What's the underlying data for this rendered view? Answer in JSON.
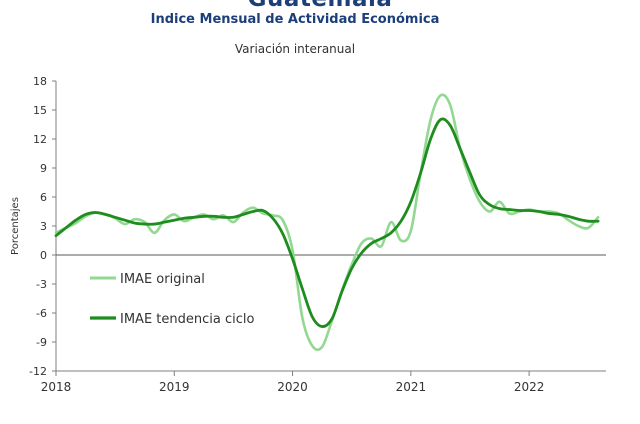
{
  "header": {
    "title": "Guatemala",
    "subtitle": "Indice Mensual de  Actividad Económica",
    "chart_subtitle": "Variación interanual"
  },
  "colors": {
    "original": "#92d891",
    "trend": "#1e8c1e",
    "axis": "#7f7f7f",
    "text": "#1c3f7a"
  },
  "chart_data": {
    "type": "line",
    "title": "Indice Mensual de  Actividad Económica",
    "subtitle": "Variación interanual",
    "xlabel": "",
    "ylabel": "Porcentajes",
    "xlim": [
      2018.0,
      2022.65
    ],
    "ylim": [
      -12,
      18
    ],
    "yticks": [
      18,
      15,
      12,
      9,
      6,
      3,
      0,
      -3,
      -6,
      -9,
      -12
    ],
    "ytick_labels": [
      "18",
      "15",
      "12",
      "9",
      "6",
      "3",
      "0",
      "-3",
      "-6",
      "-9",
      "-12"
    ],
    "xticks": [
      2018,
      2019,
      2020,
      2021,
      2022
    ],
    "xtick_labels": [
      "2018",
      "2019",
      "2020",
      "2021",
      "2022"
    ],
    "grid": false,
    "legend_position": "bottom-left",
    "series": [
      {
        "name": "IMAE original",
        "color": "#92d891",
        "x": [
          2018.0,
          2018.083,
          2018.167,
          2018.25,
          2018.333,
          2018.417,
          2018.5,
          2018.583,
          2018.667,
          2018.75,
          2018.833,
          2018.917,
          2019.0,
          2019.083,
          2019.167,
          2019.25,
          2019.333,
          2019.417,
          2019.5,
          2019.583,
          2019.667,
          2019.75,
          2019.833,
          2019.917,
          2020.0,
          2020.083,
          2020.167,
          2020.25,
          2020.333,
          2020.417,
          2020.5,
          2020.583,
          2020.667,
          2020.75,
          2020.833,
          2020.917,
          2021.0,
          2021.083,
          2021.167,
          2021.25,
          2021.333,
          2021.417,
          2021.5,
          2021.583,
          2021.667,
          2021.75,
          2021.833,
          2021.917,
          2022.0,
          2022.083,
          2022.167,
          2022.25,
          2022.333,
          2022.417,
          2022.5,
          2022.583
        ],
        "values": [
          2.3,
          2.8,
          3.3,
          4.0,
          4.4,
          4.2,
          3.8,
          3.2,
          3.7,
          3.4,
          2.3,
          3.6,
          4.2,
          3.5,
          3.9,
          4.2,
          3.7,
          4.1,
          3.4,
          4.4,
          4.9,
          4.3,
          4.1,
          3.6,
          0.5,
          -6.5,
          -9.4,
          -9.5,
          -6.8,
          -3.7,
          -1.0,
          1.2,
          1.7,
          0.9,
          3.4,
          1.5,
          2.5,
          8.5,
          14.0,
          16.5,
          15.5,
          11.0,
          7.8,
          5.5,
          4.5,
          5.5,
          4.3,
          4.5,
          4.7,
          4.5,
          4.5,
          4.3,
          3.6,
          3.0,
          2.8,
          3.9
        ]
      },
      {
        "name": "IMAE tendencia ciclo",
        "color": "#1e8c1e",
        "x": [
          2018.0,
          2018.083,
          2018.167,
          2018.25,
          2018.333,
          2018.417,
          2018.5,
          2018.583,
          2018.667,
          2018.75,
          2018.833,
          2018.917,
          2019.0,
          2019.083,
          2019.167,
          2019.25,
          2019.333,
          2019.417,
          2019.5,
          2019.583,
          2019.667,
          2019.75,
          2019.833,
          2019.917,
          2020.0,
          2020.083,
          2020.167,
          2020.25,
          2020.333,
          2020.417,
          2020.5,
          2020.583,
          2020.667,
          2020.75,
          2020.833,
          2020.917,
          2021.0,
          2021.083,
          2021.167,
          2021.25,
          2021.333,
          2021.417,
          2021.5,
          2021.583,
          2021.667,
          2021.75,
          2021.833,
          2021.917,
          2022.0,
          2022.083,
          2022.167,
          2022.25,
          2022.333,
          2022.417,
          2022.5,
          2022.583
        ],
        "values": [
          2.0,
          2.8,
          3.6,
          4.2,
          4.4,
          4.2,
          3.9,
          3.6,
          3.3,
          3.2,
          3.2,
          3.4,
          3.6,
          3.8,
          3.9,
          4.0,
          4.0,
          3.9,
          3.9,
          4.2,
          4.5,
          4.6,
          3.8,
          2.2,
          -0.4,
          -3.5,
          -6.4,
          -7.4,
          -6.6,
          -3.8,
          -1.4,
          0.2,
          1.2,
          1.7,
          2.3,
          3.5,
          5.5,
          8.5,
          12.0,
          14.0,
          13.4,
          11.0,
          8.5,
          6.2,
          5.2,
          4.8,
          4.7,
          4.6,
          4.6,
          4.5,
          4.3,
          4.2,
          4.0,
          3.7,
          3.5,
          3.5
        ]
      }
    ]
  }
}
